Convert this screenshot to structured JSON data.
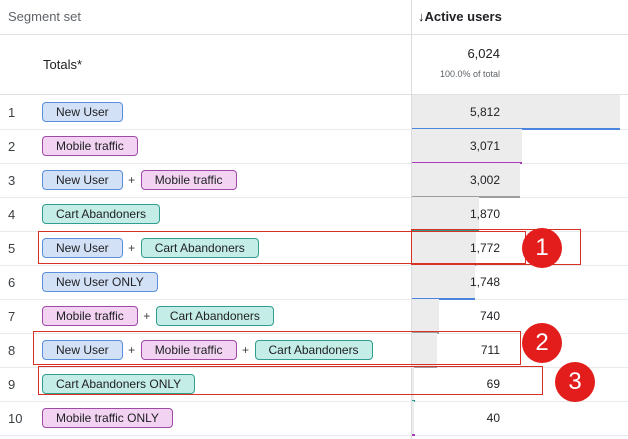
{
  "header": {
    "segment_set": "Segment set",
    "active_users": "↓Active users"
  },
  "totals": {
    "label": "Totals*",
    "value": "6,024",
    "percent": "100.0% of total"
  },
  "rows": [
    {
      "num": "1",
      "value": "5,812",
      "fraction": 0.965,
      "line_color": "#4a86e0",
      "segments": [
        {
          "label": "New User",
          "color": "blue"
        }
      ]
    },
    {
      "num": "2",
      "value": "3,071",
      "fraction": 0.51,
      "line_color": "#a93bb9",
      "segments": [
        {
          "label": "Mobile traffic",
          "color": "pink"
        }
      ]
    },
    {
      "num": "3",
      "value": "3,002",
      "fraction": 0.498,
      "line_color": "#9e9e9e",
      "segments": [
        {
          "label": "New User",
          "color": "blue"
        },
        {
          "label": "Mobile traffic",
          "color": "pink"
        }
      ]
    },
    {
      "num": "4",
      "value": "1,870",
      "fraction": 0.31,
      "line_color": "#2a9d8f",
      "segments": [
        {
          "label": "Cart Abandoners",
          "color": "teal"
        }
      ]
    },
    {
      "num": "5",
      "value": "1,772",
      "fraction": 0.294,
      "line_color": "#9e9e9e",
      "segments": [
        {
          "label": "New User",
          "color": "blue"
        },
        {
          "label": "Cart Abandoners",
          "color": "teal"
        }
      ]
    },
    {
      "num": "6",
      "value": "1,748",
      "fraction": 0.29,
      "line_color": "#4a86e0",
      "segments": [
        {
          "label": "New User ONLY",
          "color": "blue"
        }
      ]
    },
    {
      "num": "7",
      "value": "740",
      "fraction": 0.123,
      "line_color": "#9e9e9e",
      "segments": [
        {
          "label": "Mobile traffic",
          "color": "pink"
        },
        {
          "label": "Cart Abandoners",
          "color": "teal"
        }
      ]
    },
    {
      "num": "8",
      "value": "711",
      "fraction": 0.118,
      "line_color": "#9e9e9e",
      "segments": [
        {
          "label": "New User",
          "color": "blue"
        },
        {
          "label": "Mobile traffic",
          "color": "pink"
        },
        {
          "label": "Cart Abandoners",
          "color": "teal"
        }
      ]
    },
    {
      "num": "9",
      "value": "69",
      "fraction": 0.011,
      "line_color": "#2a9d8f",
      "segments": [
        {
          "label": "Cart Abandoners ONLY",
          "color": "teal"
        }
      ]
    },
    {
      "num": "10",
      "value": "40",
      "fraction": 0.007,
      "line_color": "#a93bb9",
      "segments": [
        {
          "label": "Mobile traffic ONLY",
          "color": "pink"
        }
      ]
    }
  ],
  "plus_sign": "+",
  "callouts": [
    "1",
    "2",
    "3"
  ]
}
